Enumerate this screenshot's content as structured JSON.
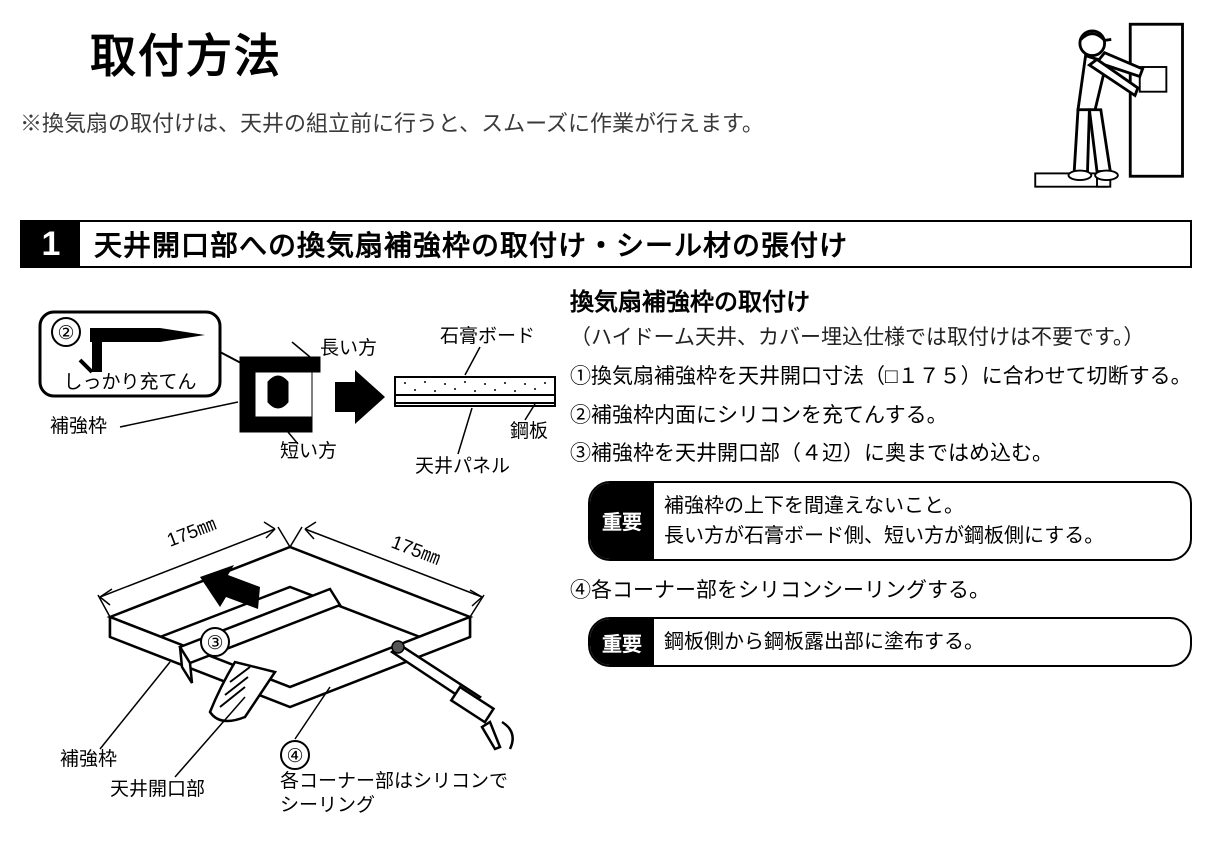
{
  "page": {
    "title": "取付方法",
    "note": "※換気扇の取付けは、天井の組立前に行うと、スムーズに作業が行えます。"
  },
  "section1": {
    "number": "1",
    "title": "天井開口部への換気扇補強枠の取付け・シール材の張付け",
    "subHeading": "換気扇補強枠の取付け",
    "parenNote": "（ハイドーム天井、カバー埋込仕様では取付けは不要です。）",
    "steps": {
      "s1": "①換気扇補強枠を天井開口寸法（□１７５）に合わせて切断する。",
      "s2": "②補強枠内面にシリコンを充てんする。",
      "s3": "③補強枠を天井開口部（４辺）に奥まではめ込む。",
      "s4": "④各コーナー部をシリコンシーリングする。"
    },
    "important1": {
      "label": "重要",
      "text": "補強枠の上下を間違えないこと。\n長い方が石膏ボード側、短い方が鋼板側にする。"
    },
    "important2": {
      "label": "重要",
      "text": "鋼板側から鋼板露出部に塗布する。"
    }
  },
  "diagram1": {
    "callout": {
      "num": "②",
      "text": "しっかり充てん"
    },
    "labels": {
      "hokyowaku": "補強枠",
      "nagai": "長い方",
      "mijikai": "短い方",
      "sekkouBoard": "石膏ボード",
      "kouhan": "鋼板",
      "tenjoPanel": "天井パネル"
    }
  },
  "diagram2": {
    "dim1": "175㎜",
    "dim2": "175㎜",
    "num3": "③",
    "num4": "④",
    "labels": {
      "hokyowaku": "補強枠",
      "tenjoKaiko": "天井開口部",
      "cornerNote": "各コーナー部はシリコンで\nシーリング"
    }
  },
  "style": {
    "bg": "#ffffff",
    "text": "#000000",
    "stroke": "#000000",
    "titleSize": 46,
    "sectionTitleSize": 28,
    "bodySize": 21
  }
}
